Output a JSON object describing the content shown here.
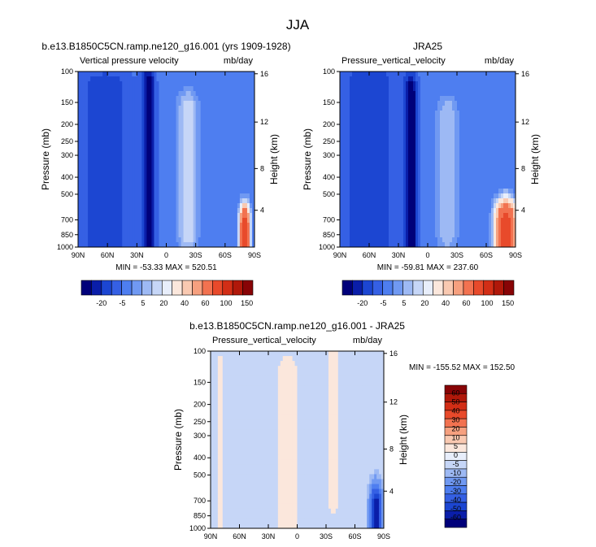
{
  "figure": {
    "main_title": "JJA"
  },
  "chart_data": [
    {
      "type": "heatmap",
      "title": "b.e13.B1850C5CN.ramp.ne120_g16.001 (yrs 1909-1928)",
      "left_label": "Vertical pressure velocity",
      "right_label": "mb/day",
      "xlabel": "",
      "ylabel": "Pressure (mb)",
      "y2label": "Height (km)",
      "x_ticks": [
        "90N",
        "60N",
        "30N",
        "0",
        "30S",
        "60S",
        "90S"
      ],
      "y_ticks": [
        100,
        150,
        200,
        250,
        300,
        400,
        500,
        700,
        850,
        1000
      ],
      "y2_ticks": [
        16,
        12,
        8,
        4
      ],
      "xlim": [
        90,
        -90
      ],
      "ylim": [
        1000,
        100
      ],
      "stats": "MIN = -53.33   MAX = 520.51",
      "min": -53.33,
      "max": 520.51,
      "contour_levels": [
        -25,
        -20,
        -15,
        -10,
        -5,
        0,
        5,
        10,
        15,
        20,
        30,
        40,
        50,
        60,
        80,
        100,
        120,
        150
      ],
      "colorbar_labels": [
        "-20",
        "-5",
        "5",
        "20",
        "40",
        "60",
        "100",
        "150"
      ],
      "features": [
        {
          "lat": 62,
          "p_top": 120,
          "p_bot": 1000,
          "value": -13,
          "width": 30
        },
        {
          "lat": 18,
          "p_top": 115,
          "p_bot": 1000,
          "value": -20,
          "width": 7
        },
        {
          "lat": -22,
          "p_top": 160,
          "p_bot": 850,
          "value": 20,
          "width": 11
        },
        {
          "lat": -80,
          "p_top": 740,
          "p_bot": 1000,
          "value": 100,
          "width": 5
        }
      ]
    },
    {
      "type": "heatmap",
      "title": "JRA25",
      "left_label": "Pressure_vertical_velocity",
      "right_label": "mb/day",
      "xlabel": "",
      "ylabel": "Pressure (mb)",
      "y2label": "Height (km)",
      "x_ticks": [
        "90N",
        "60N",
        "30N",
        "0",
        "30S",
        "60S",
        "90S"
      ],
      "y_ticks": [
        100,
        150,
        200,
        250,
        300,
        400,
        500,
        700,
        850,
        1000
      ],
      "y2_ticks": [
        16,
        12,
        8,
        4
      ],
      "xlim": [
        90,
        -90
      ],
      "ylim": [
        1000,
        100
      ],
      "stats": "MIN = -59.81   MAX = 237.60",
      "min": -59.81,
      "max": 237.6,
      "contour_levels": [
        -25,
        -20,
        -15,
        -10,
        -5,
        0,
        5,
        10,
        15,
        20,
        30,
        40,
        50,
        60,
        80,
        100,
        120,
        150
      ],
      "colorbar_labels": [
        "-20",
        "-5",
        "5",
        "20",
        "40",
        "60",
        "100",
        "150"
      ],
      "features": [
        {
          "lat": 60,
          "p_top": 110,
          "p_bot": 1000,
          "value": -13,
          "width": 32
        },
        {
          "lat": 17,
          "p_top": 130,
          "p_bot": 1000,
          "value": -22,
          "width": 7
        },
        {
          "lat": -20,
          "p_top": 170,
          "p_bot": 850,
          "value": 15,
          "width": 12
        },
        {
          "lat": -80,
          "p_top": 690,
          "p_bot": 1000,
          "value": 100,
          "width": 10
        }
      ]
    },
    {
      "type": "heatmap",
      "title": "b.e13.B1850C5CN.ramp.ne120_g16.001 - JRA25",
      "left_label": "Pressure_vertical_velocity",
      "right_label": "mb/day",
      "xlabel": "",
      "ylabel": "Pressure (mb)",
      "y2label": "Height (km)",
      "x_ticks": [
        "90N",
        "60N",
        "30N",
        "0",
        "30S",
        "60S",
        "90S"
      ],
      "y_ticks": [
        100,
        150,
        200,
        250,
        300,
        400,
        500,
        700,
        850,
        1000
      ],
      "y2_ticks": [
        16,
        12,
        8,
        4
      ],
      "xlim": [
        90,
        -90
      ],
      "ylim": [
        1000,
        100
      ],
      "stats": "MIN = -155.52   MAX = 152.50",
      "min": -155.52,
      "max": 152.5,
      "contour_levels": [
        -60,
        -50,
        -40,
        -30,
        -20,
        -10,
        -5,
        0,
        5,
        10,
        20,
        30,
        40,
        50,
        60
      ],
      "colorbar_labels": [
        "60",
        "50",
        "40",
        "30",
        "20",
        "10",
        "5",
        "0",
        "-5",
        "-10",
        "-20",
        "-30",
        "-40",
        "-50",
        "-60"
      ],
      "features": [
        {
          "lat": 80,
          "p_top": 120,
          "p_bot": 1000,
          "value": 3,
          "width": 4
        },
        {
          "lat": 10,
          "p_top": 140,
          "p_bot": 1000,
          "value": 6,
          "width": 10
        },
        {
          "lat": -38,
          "p_top": 100,
          "p_bot": 700,
          "value": 3,
          "width": 8
        },
        {
          "lat": -82,
          "p_top": 720,
          "p_bot": 1000,
          "value": -55,
          "width": 6
        }
      ]
    }
  ],
  "colors": {
    "level_colors": [
      "#00007a",
      "#0a1ea9",
      "#1c46d2",
      "#3560e4",
      "#4e7ef0",
      "#7099f2",
      "#9db9f4",
      "#c6d6f7",
      "#e8eefb",
      "#fbe7dc",
      "#f9c9b1",
      "#f6a07f",
      "#f27250",
      "#e84a2b",
      "#d22e16",
      "#b0180a",
      "#880406"
    ],
    "frame": "#000000"
  }
}
